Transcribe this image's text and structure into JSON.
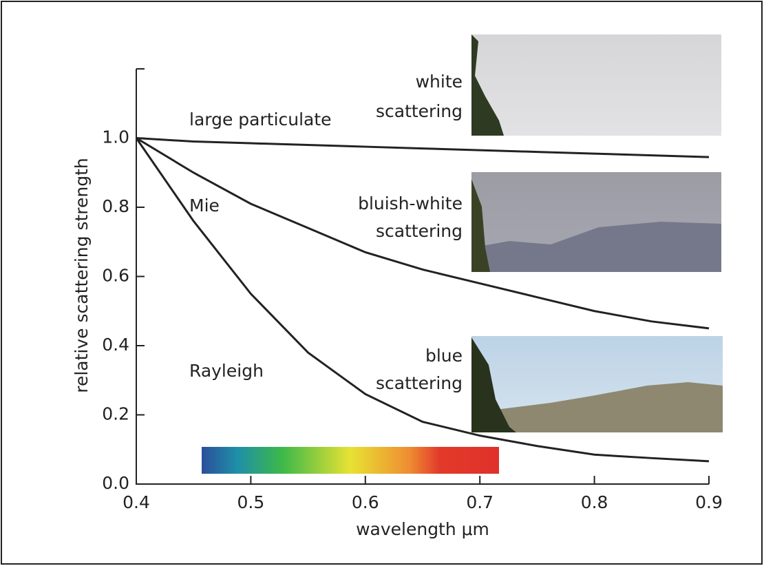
{
  "chart_data": {
    "type": "line",
    "xlabel": "wavelength μm",
    "ylabel": "relative scattering strength",
    "x": [
      0.4,
      0.45,
      0.5,
      0.55,
      0.6,
      0.65,
      0.7,
      0.75,
      0.8,
      0.85,
      0.9
    ],
    "series": [
      {
        "name": "large particulate",
        "color": "#222222",
        "values": [
          1.0,
          0.99,
          0.985,
          0.98,
          0.975,
          0.97,
          0.965,
          0.96,
          0.955,
          0.95,
          0.945
        ]
      },
      {
        "name": "Mie",
        "color": "#222222",
        "values": [
          1.0,
          0.9,
          0.81,
          0.74,
          0.67,
          0.62,
          0.58,
          0.54,
          0.5,
          0.47,
          0.45
        ]
      },
      {
        "name": "Rayleigh",
        "color": "#222222",
        "values": [
          1.0,
          0.76,
          0.55,
          0.38,
          0.26,
          0.18,
          0.14,
          0.11,
          0.085,
          0.075,
          0.066
        ]
      }
    ],
    "xlim": [
      0.4,
      0.9
    ],
    "xticks": [
      0.4,
      0.5,
      0.6,
      0.7,
      0.8,
      0.9
    ],
    "ylim": [
      0,
      1.2
    ],
    "yticks": [
      {
        "value": 0,
        "label": "0.0"
      },
      0.2,
      0.4,
      0.6,
      0.8,
      {
        "value": 1,
        "label": "1.0"
      }
    ],
    "annotations": [
      [
        "white",
        "scattering"
      ],
      [
        "bluish-white",
        "scattering"
      ],
      [
        "blue",
        "scattering"
      ]
    ]
  }
}
